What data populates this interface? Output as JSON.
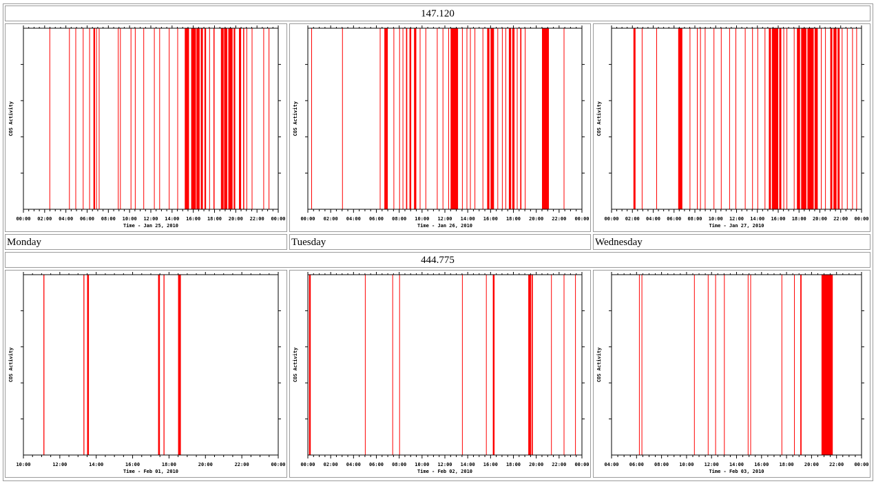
{
  "colors": {
    "activity": "#ff0000",
    "axis": "#000000",
    "grid": "#808080"
  },
  "sections": [
    {
      "frequency": "147.120",
      "days": [
        "Monday",
        "Tuesday",
        "Wednesday"
      ],
      "charts": [
        {
          "type": "bar",
          "title": "",
          "ylabel": "COS Activity",
          "xlabel": "Time - Jan 25, 2010",
          "x_ticks": [
            "00:00",
            "02:00",
            "04:00",
            "06:00",
            "08:00",
            "10:00",
            "12:00",
            "14:00",
            "16:00",
            "18:00",
            "20:00",
            "22:00",
            "00:00"
          ],
          "xlim": [
            0,
            24
          ],
          "events": [
            [
              2.45,
              2.5
            ],
            [
              4.3,
              4.35
            ],
            [
              4.9,
              4.95
            ],
            [
              5.6,
              5.65
            ],
            [
              6.2,
              6.25
            ],
            [
              6.6,
              6.75
            ],
            [
              6.85,
              6.9
            ],
            [
              7.1,
              7.15
            ],
            [
              8.9,
              8.95
            ],
            [
              9.1,
              9.15
            ],
            [
              10.1,
              10.15
            ],
            [
              10.5,
              10.55
            ],
            [
              11.3,
              11.35
            ],
            [
              12.3,
              12.35
            ],
            [
              12.8,
              12.85
            ],
            [
              13.7,
              13.75
            ],
            [
              14.5,
              14.55
            ],
            [
              15.2,
              15.6
            ],
            [
              15.8,
              16.25
            ],
            [
              16.3,
              16.6
            ],
            [
              16.7,
              16.9
            ],
            [
              17.05,
              17.2
            ],
            [
              17.5,
              17.55
            ],
            [
              17.9,
              18.0
            ],
            [
              18.6,
              18.85
            ],
            [
              18.9,
              19.2
            ],
            [
              19.3,
              19.7
            ],
            [
              19.8,
              19.95
            ],
            [
              20.3,
              20.5
            ],
            [
              20.7,
              20.8
            ],
            [
              21.0,
              21.05
            ],
            [
              21.5,
              21.55
            ],
            [
              22.6,
              22.65
            ],
            [
              23.1,
              23.15
            ]
          ]
        },
        {
          "type": "bar",
          "title": "",
          "ylabel": "COS Activity",
          "xlabel": "Time - Jan 26, 2010",
          "x_ticks": [
            "00:00",
            "02:00",
            "04:00",
            "06:00",
            "08:00",
            "10:00",
            "12:00",
            "14:00",
            "16:00",
            "18:00",
            "20:00",
            "22:00",
            "00:00"
          ],
          "xlim": [
            0,
            24
          ],
          "events": [
            [
              0.3,
              0.35
            ],
            [
              3.0,
              3.05
            ],
            [
              6.3,
              6.35
            ],
            [
              6.7,
              7.0
            ],
            [
              7.5,
              7.55
            ],
            [
              8.0,
              8.05
            ],
            [
              8.3,
              8.35
            ],
            [
              8.6,
              8.7
            ],
            [
              8.9,
              9.05
            ],
            [
              9.3,
              9.5
            ],
            [
              9.8,
              9.85
            ],
            [
              10.3,
              10.35
            ],
            [
              11.3,
              11.35
            ],
            [
              11.8,
              11.85
            ],
            [
              12.3,
              12.35
            ],
            [
              12.5,
              13.15
            ],
            [
              13.5,
              13.55
            ],
            [
              13.9,
              13.95
            ],
            [
              14.2,
              14.25
            ],
            [
              14.6,
              14.65
            ],
            [
              15.3,
              15.35
            ],
            [
              15.7,
              15.9
            ],
            [
              16.0,
              16.3
            ],
            [
              16.6,
              16.65
            ],
            [
              17.0,
              17.05
            ],
            [
              17.3,
              17.35
            ],
            [
              17.6,
              17.8
            ],
            [
              17.9,
              18.1
            ],
            [
              18.3,
              18.35
            ],
            [
              18.6,
              18.7
            ],
            [
              19.0,
              19.05
            ],
            [
              20.5,
              21.1
            ],
            [
              22.4,
              22.45
            ]
          ]
        },
        {
          "type": "bar",
          "title": "",
          "ylabel": "COS Activity",
          "xlabel": "Time - Jan 27, 2010",
          "x_ticks": [
            "00:00",
            "02:00",
            "04:00",
            "06:00",
            "08:00",
            "10:00",
            "12:00",
            "14:00",
            "16:00",
            "18:00",
            "20:00",
            "22:00",
            "00:00"
          ],
          "xlim": [
            0,
            24
          ],
          "events": [
            [
              2.1,
              2.3
            ],
            [
              2.9,
              2.95
            ],
            [
              4.3,
              4.35
            ],
            [
              6.4,
              6.8
            ],
            [
              7.5,
              7.55
            ],
            [
              8.2,
              8.25
            ],
            [
              8.5,
              8.55
            ],
            [
              8.95,
              9.0
            ],
            [
              9.8,
              9.85
            ],
            [
              10.5,
              10.55
            ],
            [
              11.3,
              11.35
            ],
            [
              11.9,
              11.95
            ],
            [
              12.8,
              12.85
            ],
            [
              13.5,
              13.55
            ],
            [
              14.0,
              14.05
            ],
            [
              14.7,
              14.75
            ],
            [
              15.1,
              15.3
            ],
            [
              15.4,
              16.0
            ],
            [
              16.1,
              16.3
            ],
            [
              16.5,
              16.55
            ],
            [
              16.8,
              16.85
            ],
            [
              17.5,
              17.55
            ],
            [
              17.8,
              18.1
            ],
            [
              18.2,
              18.7
            ],
            [
              18.8,
              19.4
            ],
            [
              19.5,
              19.8
            ],
            [
              20.1,
              20.15
            ],
            [
              20.5,
              20.55
            ],
            [
              21.0,
              21.2
            ],
            [
              21.3,
              21.6
            ],
            [
              21.7,
              21.9
            ],
            [
              22.1,
              22.15
            ],
            [
              22.6,
              22.65
            ],
            [
              23.1,
              23.15
            ],
            [
              23.5,
              23.55
            ]
          ]
        }
      ]
    },
    {
      "frequency": "444.775",
      "days": [],
      "charts": [
        {
          "type": "bar",
          "title": "",
          "ylabel": "COS Activity",
          "xlabel": "Time - Feb 01, 2010",
          "x_ticks": [
            "10:00",
            "12:00",
            "14:00",
            "16:00",
            "18:00",
            "20:00",
            "22:00",
            "00:00"
          ],
          "xlim": [
            10,
            24
          ],
          "events": [
            [
              11.1,
              11.15
            ],
            [
              13.3,
              13.35
            ],
            [
              13.5,
              13.6
            ],
            [
              17.4,
              17.5
            ],
            [
              17.7,
              17.75
            ],
            [
              18.5,
              18.65
            ]
          ]
        },
        {
          "type": "bar",
          "title": "",
          "ylabel": "COS Activity",
          "xlabel": "Time - Feb 02, 2010",
          "x_ticks": [
            "00:00",
            "02:00",
            "04:00",
            "06:00",
            "08:00",
            "10:00",
            "12:00",
            "14:00",
            "16:00",
            "18:00",
            "20:00",
            "22:00",
            "00:00"
          ],
          "xlim": [
            0,
            24
          ],
          "events": [
            [
              0.1,
              0.25
            ],
            [
              5.0,
              5.05
            ],
            [
              7.4,
              7.45
            ],
            [
              8.0,
              8.05
            ],
            [
              13.5,
              13.55
            ],
            [
              15.6,
              15.65
            ],
            [
              16.2,
              16.35
            ],
            [
              19.3,
              19.55
            ],
            [
              19.6,
              19.7
            ],
            [
              21.3,
              21.35
            ],
            [
              22.4,
              22.45
            ],
            [
              23.4,
              23.45
            ]
          ]
        },
        {
          "type": "bar",
          "title": "",
          "ylabel": "COS Activity",
          "xlabel": "Time - Feb 03, 2010",
          "x_ticks": [
            "04:00",
            "06:00",
            "08:00",
            "10:00",
            "12:00",
            "14:00",
            "16:00",
            "18:00",
            "20:00",
            "22:00",
            "00:00"
          ],
          "xlim": [
            4,
            24
          ],
          "events": [
            [
              6.2,
              6.25
            ],
            [
              6.4,
              6.45
            ],
            [
              10.6,
              10.65
            ],
            [
              11.7,
              11.75
            ],
            [
              12.3,
              12.35
            ],
            [
              13.0,
              13.05
            ],
            [
              14.9,
              14.95
            ],
            [
              15.1,
              15.15
            ],
            [
              17.6,
              17.65
            ],
            [
              18.6,
              18.65
            ],
            [
              19.1,
              19.2
            ],
            [
              20.8,
              21.7
            ]
          ]
        }
      ]
    }
  ]
}
